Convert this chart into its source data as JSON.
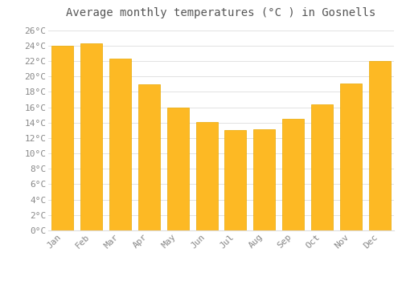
{
  "title": "Average monthly temperatures (°C ) in Gosnells",
  "months": [
    "Jan",
    "Feb",
    "Mar",
    "Apr",
    "May",
    "Jun",
    "Jul",
    "Aug",
    "Sep",
    "Oct",
    "Nov",
    "Dec"
  ],
  "values": [
    24.0,
    24.3,
    22.3,
    19.0,
    15.9,
    14.1,
    13.0,
    13.1,
    14.5,
    16.4,
    19.1,
    22.0
  ],
  "bar_color": "#FDB924",
  "bar_edge_color": "#E8A800",
  "background_color": "#FFFFFF",
  "grid_color": "#DDDDDD",
  "text_color": "#888888",
  "title_color": "#555555",
  "ylim": [
    0,
    27
  ],
  "yticks": [
    0,
    2,
    4,
    6,
    8,
    10,
    12,
    14,
    16,
    18,
    20,
    22,
    24,
    26
  ],
  "title_fontsize": 10,
  "tick_fontsize": 8,
  "font_family": "monospace"
}
